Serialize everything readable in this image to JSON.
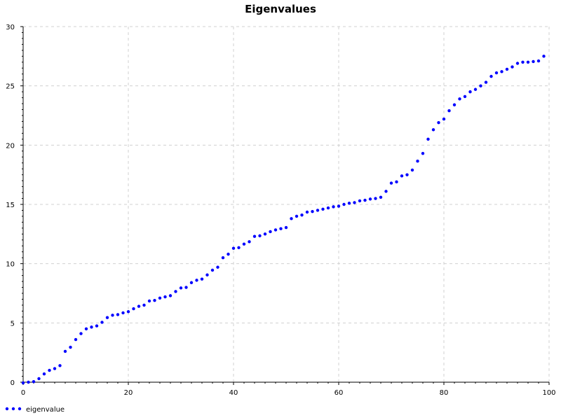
{
  "chart_data": {
    "type": "scatter",
    "title": "Eigenvalues",
    "xlabel": "",
    "ylabel": "",
    "xlim": [
      0,
      100
    ],
    "ylim": [
      0,
      30
    ],
    "x_ticks": [
      0,
      20,
      40,
      60,
      80,
      100
    ],
    "y_ticks": [
      0,
      5,
      10,
      15,
      20,
      25,
      30
    ],
    "grid": true,
    "legend_position": "bottom-left",
    "series": [
      {
        "name": "eigenvalue",
        "color": "#0000ff",
        "x": [
          0,
          1,
          2,
          3,
          4,
          5,
          6,
          7,
          8,
          9,
          10,
          11,
          12,
          13,
          14,
          15,
          16,
          17,
          18,
          19,
          20,
          21,
          22,
          23,
          24,
          25,
          26,
          27,
          28,
          29,
          30,
          31,
          32,
          33,
          34,
          35,
          36,
          37,
          38,
          39,
          40,
          41,
          42,
          43,
          44,
          45,
          46,
          47,
          48,
          49,
          50,
          51,
          52,
          53,
          54,
          55,
          56,
          57,
          58,
          59,
          60,
          61,
          62,
          63,
          64,
          65,
          66,
          67,
          68,
          69,
          70,
          71,
          72,
          73,
          74,
          75,
          76,
          77,
          78,
          79,
          80,
          81,
          82,
          83,
          84,
          85,
          86,
          87,
          88,
          89,
          90,
          91,
          92,
          93,
          94,
          95,
          96,
          97,
          98,
          99
        ],
        "y": [
          -0.1,
          0.0,
          0.05,
          0.3,
          0.7,
          1.0,
          1.15,
          1.4,
          2.6,
          2.95,
          3.6,
          4.1,
          4.5,
          4.65,
          4.75,
          5.05,
          5.45,
          5.65,
          5.7,
          5.85,
          5.95,
          6.2,
          6.4,
          6.5,
          6.85,
          6.9,
          7.1,
          7.2,
          7.3,
          7.65,
          7.95,
          8.0,
          8.4,
          8.6,
          8.7,
          9.05,
          9.45,
          9.7,
          10.5,
          10.8,
          11.3,
          11.35,
          11.65,
          11.85,
          12.3,
          12.35,
          12.5,
          12.7,
          12.85,
          12.95,
          13.05,
          13.8,
          14.0,
          14.1,
          14.35,
          14.4,
          14.5,
          14.6,
          14.7,
          14.8,
          14.85,
          15.0,
          15.1,
          15.15,
          15.3,
          15.35,
          15.45,
          15.5,
          15.6,
          16.1,
          16.8,
          16.9,
          17.4,
          17.5,
          17.9,
          18.65,
          19.3,
          20.5,
          21.3,
          21.9,
          22.2,
          22.9,
          23.4,
          23.9,
          24.1,
          24.5,
          24.7,
          25.0,
          25.3,
          25.8,
          26.1,
          26.2,
          26.4,
          26.6,
          26.9,
          27.0,
          27.0,
          27.05,
          27.1,
          27.5
        ]
      }
    ]
  }
}
